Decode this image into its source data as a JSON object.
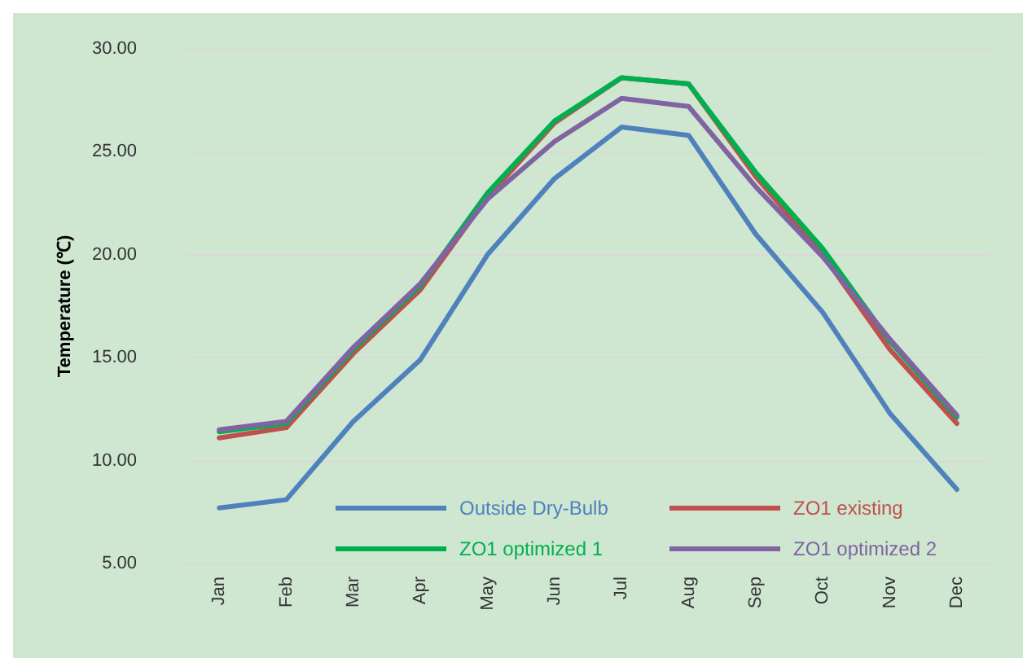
{
  "chart_data": {
    "type": "line",
    "ylabel": "Temperature (℃)",
    "categories": [
      "Jan",
      "Feb",
      "Mar",
      "Apr",
      "May",
      "Jun",
      "Jul",
      "Aug",
      "Sep",
      "Oct",
      "Nov",
      "Dec"
    ],
    "series": [
      {
        "name": "Outside Dry-Bulb",
        "color": "#4f81bd",
        "values": [
          7.7,
          8.1,
          11.9,
          14.9,
          20.0,
          23.7,
          26.2,
          25.8,
          21.0,
          17.2,
          12.3,
          8.6
        ]
      },
      {
        "name": "ZO1 existing",
        "color": "#c0504d",
        "values": [
          11.1,
          11.6,
          15.2,
          18.3,
          22.8,
          26.4,
          28.6,
          28.3,
          23.8,
          20.0,
          15.4,
          11.8
        ]
      },
      {
        "name": "ZO1 optimized 1",
        "color": "#00b050",
        "values": [
          11.4,
          11.8,
          15.4,
          18.5,
          23.0,
          26.5,
          28.6,
          28.3,
          24.0,
          20.3,
          15.8,
          12.1
        ]
      },
      {
        "name": "ZO1 optimized 2",
        "color": "#8064a2",
        "values": [
          11.5,
          11.9,
          15.5,
          18.6,
          22.7,
          25.5,
          27.6,
          27.2,
          23.3,
          19.9,
          15.9,
          12.2
        ]
      }
    ],
    "ylim": [
      5,
      30
    ],
    "yticks": [
      {
        "value": 5,
        "label": "5.00"
      },
      {
        "value": 10,
        "label": "10.00"
      },
      {
        "value": 15,
        "label": "15.00"
      },
      {
        "value": 20,
        "label": "20.00"
      },
      {
        "value": 25,
        "label": "25.00"
      },
      {
        "value": 30,
        "label": "30.00"
      }
    ],
    "grid": "y",
    "legend": "bottom",
    "marker": "none",
    "line_style": "solid"
  }
}
